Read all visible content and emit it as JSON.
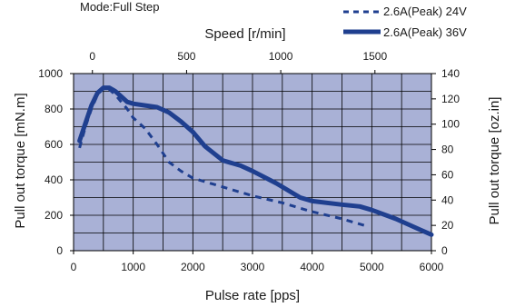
{
  "chart_data": {
    "type": "line",
    "mode_label": "Mode:Full Step",
    "xlabel": "Pulse rate [pps]",
    "ylabel": "Pull out torque [mN.m]",
    "y2label": "Pull out torque [oz.in]",
    "x2label": "Speed [r/min]",
    "xlim": [
      0,
      6000
    ],
    "ylim": [
      0,
      1000
    ],
    "y2lim": [
      0,
      140
    ],
    "x2lim": [
      -100,
      1800
    ],
    "x_ticks": [
      "0",
      "1000",
      "2000",
      "3000",
      "4000",
      "5000",
      "6000"
    ],
    "y_ticks": [
      "0",
      "200",
      "400",
      "600",
      "800",
      "1000"
    ],
    "y2_ticks": [
      "0",
      "20",
      "40",
      "60",
      "80",
      "100",
      "120",
      "140"
    ],
    "x2_ticks": [
      "0",
      "500",
      "1000",
      "1500"
    ],
    "grid": true,
    "plot_background": "#a9b1d6",
    "legend_position": "top-right",
    "series": [
      {
        "name": "2.6A(Peak) 24V",
        "style": "dashed",
        "color": "#1f3f8f",
        "x": [
          100,
          200,
          300,
          400,
          500,
          600,
          700,
          800,
          900,
          1000,
          1200,
          1400,
          1600,
          1800,
          2000,
          2500,
          3000,
          3500,
          4000,
          4500,
          4900
        ],
        "y": [
          580,
          700,
          800,
          880,
          920,
          910,
          880,
          840,
          800,
          750,
          690,
          600,
          500,
          450,
          410,
          360,
          310,
          270,
          220,
          180,
          140
        ]
      },
      {
        "name": "2.6A(Peak) 36V",
        "style": "solid",
        "color": "#1f3f8f",
        "x": [
          100,
          200,
          300,
          400,
          500,
          600,
          700,
          800,
          900,
          1000,
          1200,
          1400,
          1600,
          1800,
          2000,
          2200,
          2500,
          2800,
          3000,
          3400,
          3800,
          4000,
          4500,
          4800,
          5000,
          5400,
          5800,
          6000
        ],
        "y": [
          620,
          720,
          820,
          890,
          920,
          920,
          900,
          870,
          840,
          830,
          820,
          810,
          780,
          730,
          670,
          590,
          510,
          480,
          450,
          380,
          300,
          280,
          260,
          250,
          230,
          180,
          120,
          90
        ]
      }
    ]
  }
}
